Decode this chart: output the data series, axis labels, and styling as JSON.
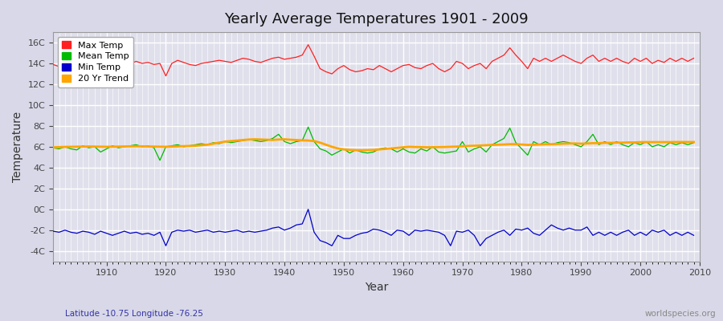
{
  "title": "Yearly Average Temperatures 1901 - 2009",
  "xlabel": "Year",
  "ylabel": "Temperature",
  "lat_lon_label": "Latitude -10.75 Longitude -76.25",
  "source_label": "worldspecies.org",
  "year_start": 1901,
  "year_end": 2009,
  "yticks": [
    -4,
    -2,
    0,
    2,
    4,
    6,
    8,
    10,
    12,
    14,
    16
  ],
  "ytick_labels": [
    "-4C",
    "-2C",
    "0C",
    "2C",
    "4C",
    "6C",
    "8C",
    "10C",
    "12C",
    "14C",
    "16C"
  ],
  "ylim": [
    -5.0,
    17.0
  ],
  "xlim": [
    1901,
    2010
  ],
  "fig_bg_color": "#d8d8e8",
  "plot_bg_color": "#e0e0ec",
  "grid_color": "#ffffff",
  "max_color": "#ff2020",
  "mean_color": "#00bb00",
  "min_color": "#0000cc",
  "trend_color": "#ffa500",
  "legend_labels": [
    "Max Temp",
    "Mean Temp",
    "Min Temp",
    "20 Yr Trend"
  ],
  "max_temp": [
    13.9,
    13.7,
    14.1,
    14.0,
    14.2,
    14.1,
    14.3,
    14.2,
    14.0,
    13.5,
    13.8,
    13.6,
    14.1,
    14.0,
    14.2,
    14.0,
    14.1,
    13.9,
    14.0,
    12.8,
    14.0,
    14.3,
    14.1,
    13.9,
    13.8,
    14.0,
    14.1,
    14.2,
    14.3,
    14.2,
    14.1,
    14.3,
    14.5,
    14.4,
    14.2,
    14.1,
    14.3,
    14.5,
    14.6,
    14.4,
    14.5,
    14.6,
    14.8,
    15.8,
    14.7,
    13.5,
    13.2,
    13.0,
    13.5,
    13.8,
    13.4,
    13.2,
    13.3,
    13.5,
    13.4,
    13.8,
    13.5,
    13.2,
    13.5,
    13.8,
    13.9,
    13.6,
    13.5,
    13.8,
    14.0,
    13.5,
    13.2,
    13.5,
    14.2,
    14.0,
    13.5,
    13.8,
    14.0,
    13.5,
    14.2,
    14.5,
    14.8,
    15.5,
    14.8,
    14.2,
    13.5,
    14.5,
    14.2,
    14.5,
    14.2,
    14.5,
    14.8,
    14.5,
    14.2,
    14.0,
    14.5,
    14.8,
    14.2,
    14.5,
    14.2,
    14.5,
    14.2,
    14.0,
    14.5,
    14.2,
    14.5,
    14.0,
    14.3,
    14.1,
    14.5,
    14.2,
    14.5,
    14.2,
    14.5
  ],
  "mean_temp": [
    5.9,
    5.8,
    6.0,
    5.8,
    5.7,
    6.1,
    5.9,
    6.0,
    5.5,
    5.8,
    6.1,
    5.9,
    6.0,
    6.1,
    6.2,
    6.0,
    6.1,
    5.9,
    4.7,
    6.0,
    6.1,
    6.2,
    6.0,
    6.1,
    6.2,
    6.3,
    6.2,
    6.4,
    6.3,
    6.5,
    6.4,
    6.5,
    6.6,
    6.7,
    6.6,
    6.5,
    6.6,
    6.8,
    7.2,
    6.5,
    6.3,
    6.5,
    6.6,
    7.9,
    6.5,
    5.8,
    5.6,
    5.2,
    5.5,
    5.8,
    5.4,
    5.7,
    5.5,
    5.4,
    5.5,
    5.8,
    5.9,
    5.8,
    5.5,
    5.8,
    5.5,
    5.4,
    5.8,
    5.6,
    6.0,
    5.5,
    5.4,
    5.5,
    5.6,
    6.5,
    5.5,
    5.8,
    6.0,
    5.5,
    6.2,
    6.5,
    6.8,
    7.8,
    6.4,
    5.8,
    5.2,
    6.5,
    6.2,
    6.5,
    6.2,
    6.4,
    6.5,
    6.4,
    6.2,
    6.0,
    6.5,
    7.2,
    6.2,
    6.5,
    6.2,
    6.5,
    6.2,
    6.0,
    6.4,
    6.2,
    6.5,
    6.0,
    6.2,
    6.0,
    6.4,
    6.2,
    6.4,
    6.2,
    6.4
  ],
  "min_temp": [
    -2.1,
    -2.2,
    -2.0,
    -2.2,
    -2.3,
    -2.1,
    -2.2,
    -2.4,
    -2.1,
    -2.3,
    -2.5,
    -2.3,
    -2.1,
    -2.3,
    -2.2,
    -2.4,
    -2.3,
    -2.5,
    -2.2,
    -3.5,
    -2.2,
    -2.0,
    -2.1,
    -2.0,
    -2.2,
    -2.1,
    -2.0,
    -2.2,
    -2.1,
    -2.2,
    -2.1,
    -2.0,
    -2.2,
    -2.1,
    -2.2,
    -2.1,
    -2.0,
    -1.8,
    -1.7,
    -2.0,
    -1.8,
    -1.5,
    -1.4,
    0.0,
    -2.2,
    -3.0,
    -3.2,
    -3.5,
    -2.5,
    -2.8,
    -2.8,
    -2.5,
    -2.3,
    -2.2,
    -1.9,
    -2.0,
    -2.2,
    -2.5,
    -2.0,
    -2.1,
    -2.5,
    -2.0,
    -2.1,
    -2.0,
    -2.1,
    -2.2,
    -2.5,
    -3.5,
    -2.1,
    -2.2,
    -2.0,
    -2.5,
    -3.5,
    -2.8,
    -2.5,
    -2.2,
    -2.0,
    -2.5,
    -1.9,
    -2.0,
    -1.8,
    -2.3,
    -2.5,
    -2.0,
    -1.5,
    -1.8,
    -2.0,
    -1.8,
    -2.0,
    -2.0,
    -1.7,
    -2.5,
    -2.2,
    -2.5,
    -2.2,
    -2.5,
    -2.2,
    -2.0,
    -2.5,
    -2.2,
    -2.5,
    -2.0,
    -2.2,
    -2.0,
    -2.5,
    -2.2,
    -2.5,
    -2.2,
    -2.5
  ],
  "trend_temp": [
    5.95,
    5.97,
    5.99,
    6.0,
    6.01,
    6.02,
    6.03,
    6.02,
    6.01,
    6.0,
    6.01,
    6.02,
    6.03,
    6.04,
    6.05,
    6.04,
    6.03,
    6.02,
    6.01,
    6.0,
    6.02,
    6.04,
    6.06,
    6.08,
    6.1,
    6.15,
    6.2,
    6.3,
    6.4,
    6.5,
    6.55,
    6.6,
    6.65,
    6.7,
    6.72,
    6.7,
    6.68,
    6.66,
    6.7,
    6.72,
    6.68,
    6.65,
    6.62,
    6.6,
    6.55,
    6.4,
    6.2,
    6.0,
    5.85,
    5.75,
    5.7,
    5.68,
    5.67,
    5.68,
    5.7,
    5.75,
    5.8,
    5.85,
    5.9,
    5.95,
    6.0,
    5.98,
    5.97,
    5.95,
    5.96,
    5.97,
    5.98,
    6.0,
    6.02,
    6.05,
    6.08,
    6.1,
    6.12,
    6.15,
    6.18,
    6.2,
    6.22,
    6.25,
    6.25,
    6.22,
    6.18,
    6.2,
    6.22,
    6.25,
    6.25,
    6.27,
    6.3,
    6.32,
    6.32,
    6.3,
    6.32,
    6.35,
    6.35,
    6.38,
    6.38,
    6.4,
    6.4,
    6.42,
    6.42,
    6.45,
    6.45,
    6.45,
    6.45,
    6.45,
    6.45,
    6.46,
    6.46,
    6.46,
    6.46
  ]
}
